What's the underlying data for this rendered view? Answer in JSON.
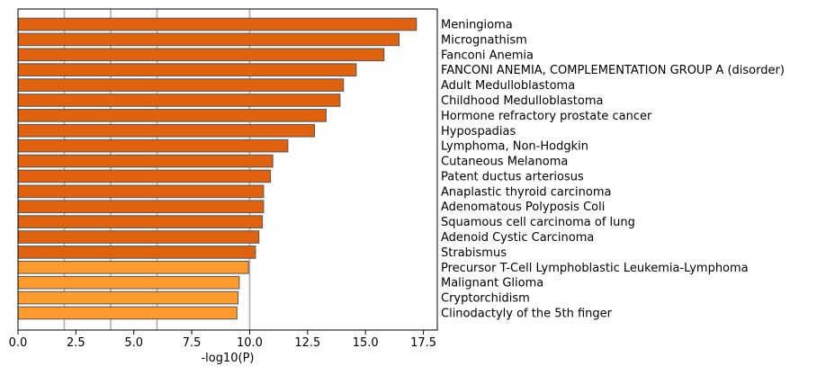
{
  "chart_data": {
    "type": "bar",
    "orientation": "horizontal",
    "title": "",
    "xlabel": "-log10(P)",
    "ylabel": "",
    "xlim": [
      0,
      18.1
    ],
    "xticks": [
      0,
      2.5,
      5,
      7.5,
      10,
      12.5,
      15,
      17.5
    ],
    "xtick_labels": [
      "0.0",
      "2.5",
      "5.0",
      "7.5",
      "10.0",
      "12.5",
      "15.0",
      "17.5"
    ],
    "grid_lines_x": [
      2,
      4,
      6,
      10
    ],
    "grid": true,
    "legend": "none",
    "categories": [
      "Meningioma",
      "Micrognathism",
      "Fanconi Anemia",
      "FANCONI ANEMIA, COMPLEMENTATION GROUP A (disorder)",
      "Adult Medulloblastoma",
      "Childhood Medulloblastoma",
      "Hormone refractory prostate cancer",
      "Hypospadias",
      "Lymphoma, Non-Hodgkin",
      "Cutaneous Melanoma",
      "Patent ductus arteriosus",
      "Anaplastic thyroid carcinoma",
      "Adenomatous Polyposis Coli",
      "Squamous cell carcinoma of lung",
      "Adenoid Cystic Carcinoma",
      "Strabismus",
      "Precursor T-Cell Lymphoblastic Leukemia-Lymphoma",
      "Malignant Glioma",
      "Cryptorchidism",
      "Clinodactyly of the 5th finger"
    ],
    "values": [
      17.2,
      16.45,
      15.8,
      14.6,
      14.05,
      13.9,
      13.3,
      12.8,
      11.65,
      11.0,
      10.9,
      10.6,
      10.6,
      10.55,
      10.4,
      10.25,
      9.95,
      9.55,
      9.5,
      9.45
    ],
    "colors": {
      "dark": "#e0620f",
      "light": "#ff9a2c",
      "edge": "#555555",
      "grid": "#b0b0b0"
    },
    "light_from_index": 16
  }
}
